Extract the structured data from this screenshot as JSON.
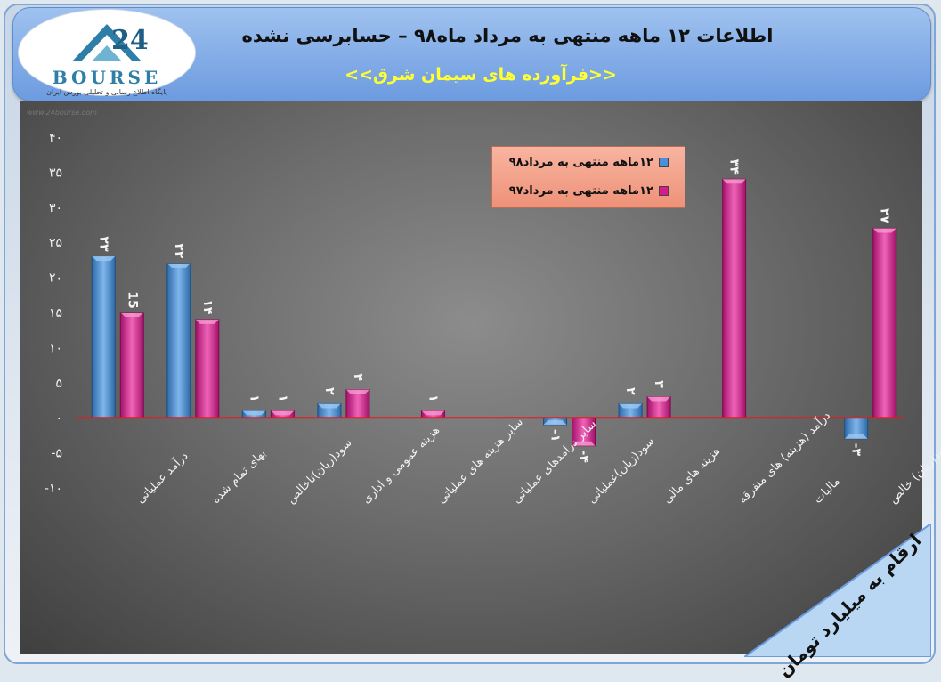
{
  "header": {
    "title": "اطلاعات ۱۲ ماهه منتهی به مرداد ماه۹۸ – حسابرسی نشده",
    "subtitle": "<<فرآورده های سیمان شرق>>"
  },
  "logo": {
    "word": "BOURSE",
    "sub": "پایگاه اطلاع رسانی و تحلیلی بورس ایران"
  },
  "footer_note": "ارقام به میلیارد تومان",
  "colors": {
    "series98": "#4a90d9",
    "series97": "#d81b8c",
    "zero_line": "#e8191c",
    "legend_bg": "#f4a58a"
  },
  "chart_data": {
    "type": "bar",
    "categories": [
      "درآمد عملیاتی",
      "بهای تمام شده",
      "سود(زیان)ناخالص",
      "هزینه عمومی و اداری",
      "سایر هزینه های عملیاتی",
      "سایر درامدهای عملیاتی",
      "سود(زیان)عملیاتی",
      "هزینه های مالی",
      "درآمد (هزینه) های متفرقه",
      "مالیات",
      "سود(زیان) خالص"
    ],
    "series": [
      {
        "name": "۱۲ماهه منتهی به مرداد۹۸",
        "values": [
          23,
          22,
          1,
          2,
          null,
          null,
          -1,
          2,
          null,
          null,
          -3
        ],
        "labels": [
          "۲۳",
          "۲۲",
          "۱",
          "۲",
          "",
          "",
          "-۱",
          "۲",
          "",
          "",
          "-۳"
        ]
      },
      {
        "name": "۱۲ماهه منتهی به مرداد۹۷",
        "values": [
          15,
          14,
          1,
          4,
          1,
          null,
          -4,
          3,
          34,
          null,
          27
        ],
        "labels": [
          "15",
          "۱۴",
          "۱",
          "۴",
          "۱",
          "",
          "-۴",
          "۳",
          "۳۴",
          "",
          "۲۷"
        ]
      }
    ],
    "ylim": [
      -10,
      40
    ],
    "yticks": [
      40,
      35,
      30,
      25,
      20,
      15,
      10,
      5,
      0,
      -5,
      -10
    ],
    "ytick_labels": [
      "۴۰",
      "۳۵",
      "۳۰",
      "۲۵",
      "۲۰",
      "۱۵",
      "۱۰",
      "۵",
      "۰",
      "-۵",
      "-۱۰"
    ],
    "legend_position": "top-center",
    "grid": false
  }
}
